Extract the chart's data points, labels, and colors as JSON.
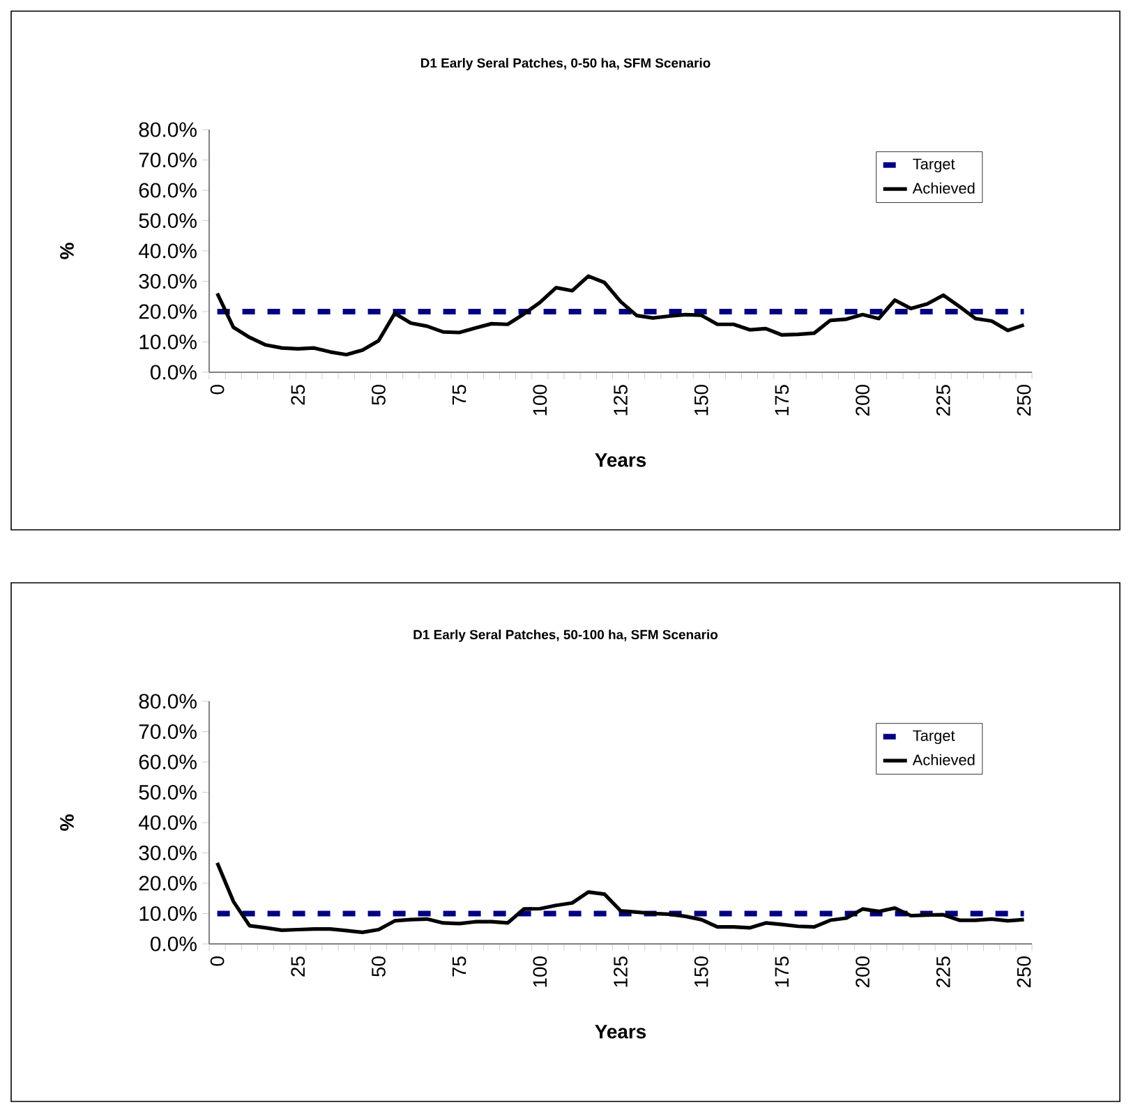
{
  "chart_data": [
    {
      "type": "line",
      "title": "D1 Early Seral Patches, 0-50 ha, SFM Scenario",
      "xlabel": "Years",
      "ylabel": "%",
      "categories": [
        "0",
        null,
        null,
        null,
        null,
        "25",
        null,
        null,
        null,
        null,
        "50",
        null,
        null,
        null,
        null,
        "75",
        null,
        null,
        null,
        null,
        "100",
        null,
        null,
        null,
        null,
        "125",
        null,
        null,
        null,
        null,
        "150",
        null,
        null,
        null,
        null,
        "175",
        null,
        null,
        null,
        null,
        "200",
        null,
        null,
        null,
        null,
        "225",
        null,
        null,
        null,
        null,
        "250"
      ],
      "ylim": [
        0,
        80
      ],
      "yticks": [
        {
          "value": 0,
          "label": "0.0%"
        },
        {
          "value": 10,
          "label": "10.0%"
        },
        {
          "value": 20,
          "label": "20.0%"
        },
        {
          "value": 30,
          "label": "30.0%"
        },
        {
          "value": 40,
          "label": "40.0%"
        },
        {
          "value": 50,
          "label": "50.0%"
        },
        {
          "value": 60,
          "label": "60.0%"
        },
        {
          "value": 70,
          "label": "70.0%"
        },
        {
          "value": 80,
          "label": "80.0%"
        }
      ],
      "legend": "top right",
      "series": [
        {
          "name": "Target",
          "color": "#000080",
          "line_style": "dashed",
          "values": [
            20,
            20,
            20,
            20,
            20,
            20,
            20,
            20,
            20,
            20,
            20,
            20,
            20,
            20,
            20,
            20,
            20,
            20,
            20,
            20,
            20,
            20,
            20,
            20,
            20,
            20,
            20,
            20,
            20,
            20,
            20,
            20,
            20,
            20,
            20,
            20,
            20,
            20,
            20,
            20,
            20,
            20,
            20,
            20,
            20,
            20,
            20,
            20,
            20,
            20,
            20
          ]
        },
        {
          "name": "Achieved",
          "color": "#000000",
          "line_style": "solid",
          "values": [
            26,
            14.8,
            11.5,
            9,
            8,
            7.7,
            8,
            6.7,
            5.8,
            7.3,
            10.4,
            19.4,
            16.2,
            15.2,
            13.3,
            13.1,
            14.6,
            16,
            15.8,
            19.2,
            23,
            27.9,
            26.9,
            31.7,
            29.6,
            23.3,
            18.7,
            17.9,
            18.5,
            19,
            18.8,
            15.8,
            15.8,
            14,
            14.4,
            12.3,
            12.5,
            12.9,
            17.1,
            17.5,
            19,
            17.7,
            23.8,
            21,
            22.5,
            25.4,
            21.7,
            17.7,
            16.9,
            13.8,
            15.6
          ]
        }
      ]
    },
    {
      "type": "line",
      "title": "D1 Early Seral Patches, 50-100 ha, SFM Scenario",
      "xlabel": "Years",
      "ylabel": "%",
      "categories": [
        "0",
        null,
        null,
        null,
        null,
        "25",
        null,
        null,
        null,
        null,
        "50",
        null,
        null,
        null,
        null,
        "75",
        null,
        null,
        null,
        null,
        "100",
        null,
        null,
        null,
        null,
        "125",
        null,
        null,
        null,
        null,
        "150",
        null,
        null,
        null,
        null,
        "175",
        null,
        null,
        null,
        null,
        "200",
        null,
        null,
        null,
        null,
        "225",
        null,
        null,
        null,
        null,
        "250"
      ],
      "ylim": [
        0,
        80
      ],
      "yticks": [
        {
          "value": 0,
          "label": "0.0%"
        },
        {
          "value": 10,
          "label": "10.0%"
        },
        {
          "value": 20,
          "label": "20.0%"
        },
        {
          "value": 30,
          "label": "30.0%"
        },
        {
          "value": 40,
          "label": "40.0%"
        },
        {
          "value": 50,
          "label": "50.0%"
        },
        {
          "value": 60,
          "label": "60.0%"
        },
        {
          "value": 70,
          "label": "70.0%"
        },
        {
          "value": 80,
          "label": "80.0%"
        }
      ],
      "legend": "top right",
      "series": [
        {
          "name": "Target",
          "color": "#000080",
          "line_style": "dashed",
          "values": [
            10,
            10,
            10,
            10,
            10,
            10,
            10,
            10,
            10,
            10,
            10,
            10,
            10,
            10,
            10,
            10,
            10,
            10,
            10,
            10,
            10,
            10,
            10,
            10,
            10,
            10,
            10,
            10,
            10,
            10,
            10,
            10,
            10,
            10,
            10,
            10,
            10,
            10,
            10,
            10,
            10,
            10,
            10,
            10,
            10,
            10,
            10,
            10,
            10,
            10,
            10
          ]
        },
        {
          "name": "Achieved",
          "color": "#000000",
          "line_style": "solid",
          "values": [
            26.7,
            14,
            6,
            5.3,
            4.5,
            4.7,
            4.9,
            4.9,
            4.4,
            3.8,
            4.7,
            7.6,
            8,
            8.2,
            6.9,
            6.7,
            7.3,
            7.3,
            6.9,
            11.5,
            11.6,
            12.7,
            13.5,
            17.1,
            16.4,
            10.9,
            10.5,
            10,
            9.8,
            9.1,
            8,
            5.6,
            5.6,
            5.3,
            6.9,
            6.4,
            5.8,
            5.6,
            7.8,
            8.5,
            11.5,
            10.7,
            11.8,
            9.3,
            9.5,
            9.6,
            7.8,
            7.8,
            8.2,
            7.6,
            8
          ]
        }
      ]
    }
  ]
}
